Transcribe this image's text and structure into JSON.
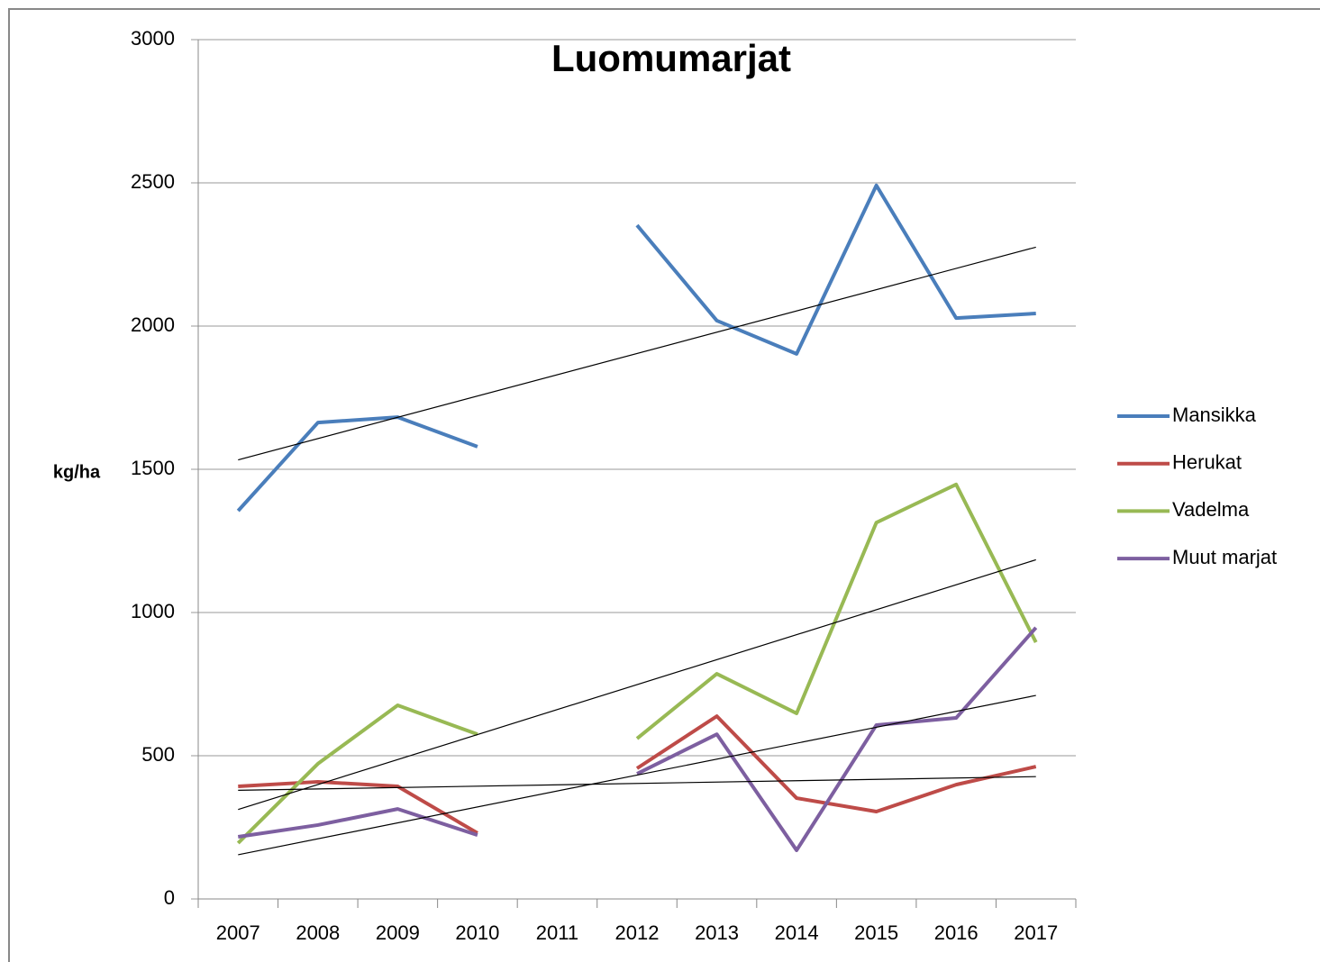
{
  "chart_data": {
    "type": "line",
    "title": "Luomumarjat",
    "y_label": "kg/ha",
    "categories": [
      "2007",
      "2008",
      "2009",
      "2010",
      "2011",
      "2012",
      "2013",
      "2014",
      "2015",
      "2016",
      "2017"
    ],
    "series": [
      {
        "name": "Mansikka",
        "color": "#4a7ebb",
        "values": [
          1355,
          1663,
          1682,
          1579,
          null,
          2352,
          2019,
          1903,
          2491,
          2028,
          2044
        ]
      },
      {
        "name": "Herukat",
        "color": "#be4b48",
        "values": [
          393,
          409,
          393,
          230,
          null,
          456,
          638,
          352,
          305,
          399,
          462
        ]
      },
      {
        "name": "Vadelma",
        "color": "#98b954",
        "values": [
          195,
          472,
          676,
          575,
          null,
          560,
          786,
          648,
          1314,
          1447,
          896
        ]
      },
      {
        "name": "Muut marjat",
        "color": "#7d5fa0",
        "values": [
          217,
          258,
          314,
          223,
          null,
          437,
          575,
          170,
          607,
          632,
          947
        ]
      }
    ],
    "ylim": [
      0,
      3000
    ],
    "yticks": [
      0,
      500,
      1000,
      1500,
      2000,
      2500,
      3000
    ],
    "grid": true,
    "trendline": true,
    "legend": "right"
  }
}
